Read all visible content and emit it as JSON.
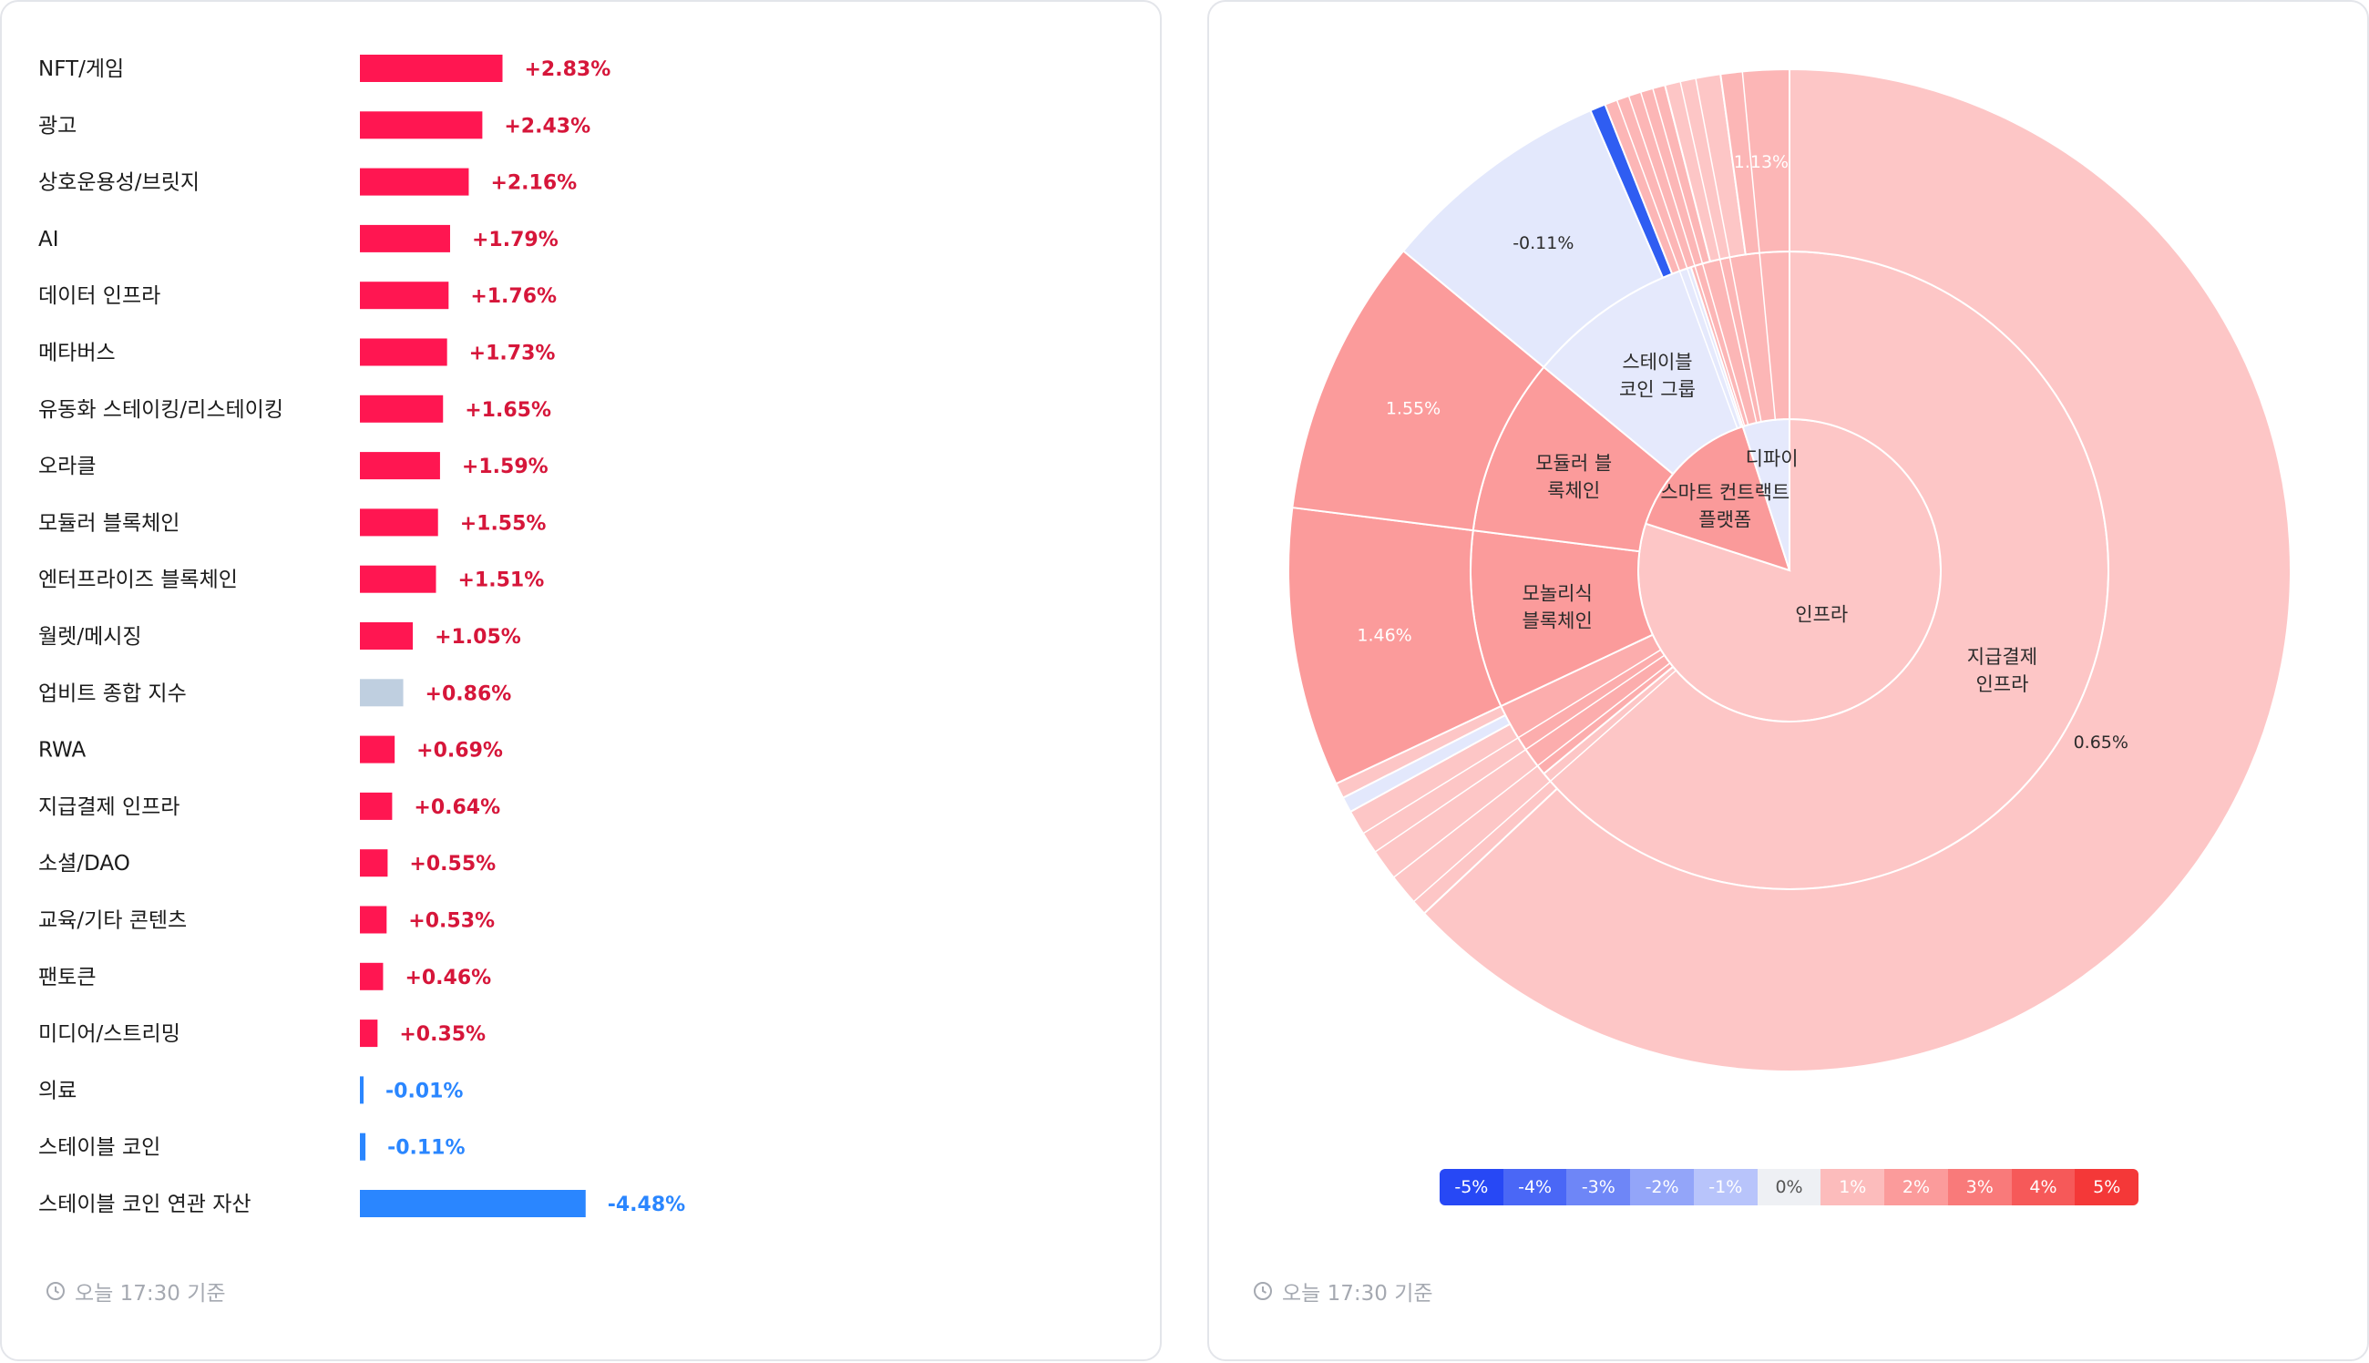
{
  "bar_panel": {
    "footer": "오늘 17:30 기준"
  },
  "sunburst_panel": {
    "footer": "오늘 17:30 기준",
    "legend": [
      "-5%",
      "-4%",
      "-3%",
      "-2%",
      "-1%",
      "0%",
      "1%",
      "2%",
      "3%",
      "4%",
      "5%"
    ],
    "legend_colors": [
      "#2748f5",
      "#4a67f6",
      "#6e86f7",
      "#93a5f9",
      "#b8c4fb",
      "#eef0f4",
      "#fcbcbc",
      "#fb9b9b",
      "#f97a7a",
      "#f65959",
      "#f43838"
    ]
  },
  "chart_data": [
    {
      "type": "bar",
      "orientation": "horizontal",
      "categories": [
        "NFT/게임",
        "광고",
        "상호운용성/브릿지",
        "AI",
        "데이터 인프라",
        "메타버스",
        "유동화 스테이킹/리스테이킹",
        "오라클",
        "모듈러 블록체인",
        "엔터프라이즈 블록체인",
        "월렛/메시징",
        "업비트 종합 지수",
        "RWA",
        "지급결제 인프라",
        "소셜/DAO",
        "교육/기타 콘텐츠",
        "팬토큰",
        "미디어/스트리밍",
        "의료",
        "스테이블 코인",
        "스테이블 코인 연관 자산"
      ],
      "values": [
        2.83,
        2.43,
        2.16,
        1.79,
        1.76,
        1.73,
        1.65,
        1.59,
        1.55,
        1.51,
        1.05,
        0.86,
        0.69,
        0.64,
        0.55,
        0.53,
        0.46,
        0.35,
        -0.01,
        -0.11,
        -4.48
      ],
      "labels": [
        "+2.83%",
        "+2.43%",
        "+2.16%",
        "+1.79%",
        "+1.76%",
        "+1.73%",
        "+1.65%",
        "+1.59%",
        "+1.55%",
        "+1.51%",
        "+1.05%",
        "+0.86%",
        "+0.69%",
        "+0.64%",
        "+0.55%",
        "+0.53%",
        "+0.46%",
        "+0.35%",
        "-0.01%",
        "-0.11%",
        "-4.48%"
      ],
      "colors": {
        "positive": "#ff1651",
        "negative": "#2a86ff",
        "index": "#bfcfe0",
        "positive_text": "#d6163a",
        "negative_text": "#2a86ff"
      }
    },
    {
      "type": "sunburst",
      "rings": {
        "inner": [
          {
            "name": "인프라",
            "start": 0,
            "end": 0.8
          },
          {
            "name": "스마트 컨트랙트\n플랫폼",
            "start": 0.8,
            "end": 0.95
          },
          {
            "name": "디파이",
            "start": 0.95,
            "end": 1.0
          }
        ],
        "middle": [
          {
            "name": "지급결제\n인프라",
            "start": 0,
            "end": 0.64
          },
          {
            "name": "",
            "start": 0.64,
            "end": 0.68
          },
          {
            "name": "모놀리식\n블록체인",
            "start": 0.68,
            "end": 0.77
          },
          {
            "name": "모듈러 블\n록체인",
            "start": 0.77,
            "end": 0.86
          },
          {
            "name": "스테이블\n코인 그룹",
            "start": 0.86,
            "end": 0.95
          },
          {
            "name": "",
            "start": 0.95,
            "end": 1.0
          }
        ],
        "outer": [
          {
            "label": "0.65%",
            "value": 0.65,
            "start": 0,
            "end": 0.63
          },
          {
            "label": "",
            "value": 0.4,
            "start": 0.63,
            "end": 0.67
          },
          {
            "label": "",
            "value": -0.05,
            "start": 0.67,
            "end": 0.675
          },
          {
            "label": "",
            "value": 0.3,
            "start": 0.675,
            "end": 0.68
          },
          {
            "label": "1.46%",
            "value": 1.46,
            "start": 0.68,
            "end": 0.77
          },
          {
            "label": "1.55%",
            "value": 1.55,
            "start": 0.77,
            "end": 0.86
          },
          {
            "label": "-0.11%",
            "value": -0.11,
            "start": 0.86,
            "end": 0.935
          },
          {
            "label": "",
            "value": -4.48,
            "start": 0.935,
            "end": 0.94
          },
          {
            "label": "",
            "value": 1.0,
            "start": 0.94,
            "end": 0.96
          },
          {
            "label": "",
            "value": 0.6,
            "start": 0.96,
            "end": 0.978
          },
          {
            "label": "1.13%",
            "value": 1.13,
            "start": 0.978,
            "end": 1.0
          }
        ]
      }
    }
  ]
}
